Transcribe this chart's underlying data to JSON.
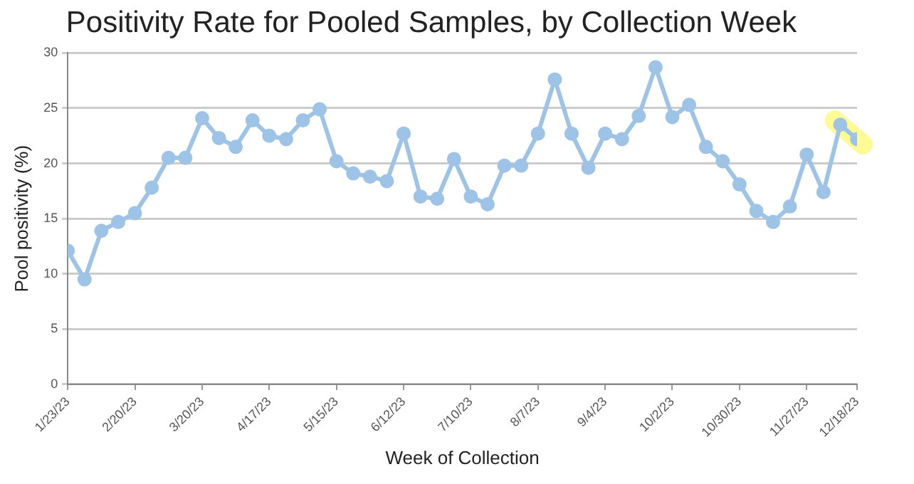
{
  "chart_data": {
    "type": "line",
    "title": "Positivity Rate for Pooled Samples, by Collection Week",
    "xlabel": "Week of Collection",
    "ylabel": "Pool positivity (%)",
    "x": [
      "2023-01-23",
      "2023-01-30",
      "2023-02-06",
      "2023-02-13",
      "2023-02-20",
      "2023-02-27",
      "2023-03-06",
      "2023-03-13",
      "2023-03-20",
      "2023-03-27",
      "2023-04-03",
      "2023-04-10",
      "2023-04-17",
      "2023-04-24",
      "2023-05-01",
      "2023-05-08",
      "2023-05-15",
      "2023-05-22",
      "2023-05-29",
      "2023-06-05",
      "2023-06-12",
      "2023-06-19",
      "2023-06-26",
      "2023-07-03",
      "2023-07-10",
      "2023-07-17",
      "2023-07-24",
      "2023-07-31",
      "2023-08-07",
      "2023-08-14",
      "2023-08-21",
      "2023-08-28",
      "2023-09-04",
      "2023-09-11",
      "2023-09-18",
      "2023-09-25",
      "2023-10-02",
      "2023-10-09",
      "2023-10-16",
      "2023-10-23",
      "2023-10-30",
      "2023-11-06",
      "2023-11-13",
      "2023-11-20",
      "2023-11-27",
      "2023-12-04",
      "2023-12-11",
      "2023-12-18"
    ],
    "series": [
      {
        "color": "#9dc3e6",
        "values": [
          12.1,
          9.5,
          13.9,
          14.7,
          15.5,
          17.8,
          20.5,
          20.5,
          24.1,
          22.3,
          21.5,
          23.9,
          22.5,
          22.2,
          23.9,
          24.9,
          20.2,
          19.1,
          18.8,
          18.4,
          22.7,
          17.0,
          16.8,
          20.4,
          17.0,
          16.3,
          19.8,
          19.8,
          22.7,
          27.6,
          22.7,
          19.6,
          22.7,
          22.2,
          24.3,
          28.7,
          24.2,
          25.3,
          21.5,
          20.2,
          18.1,
          15.7,
          14.7,
          16.1,
          20.8,
          17.4,
          23.5,
          22.2
        ]
      }
    ],
    "xlim": [
      "2023-01-23",
      "2023-12-18"
    ],
    "xticks": [
      {
        "value": "2023-01-23",
        "label": "1/23/23"
      },
      {
        "value": "2023-02-20",
        "label": "2/20/23"
      },
      {
        "value": "2023-03-20",
        "label": "3/20/23"
      },
      {
        "value": "2023-04-17",
        "label": "4/17/23"
      },
      {
        "value": "2023-05-15",
        "label": "5/15/23"
      },
      {
        "value": "2023-06-12",
        "label": "6/12/23"
      },
      {
        "value": "2023-07-10",
        "label": "7/10/23"
      },
      {
        "value": "2023-08-07",
        "label": "8/7/23"
      },
      {
        "value": "2023-09-04",
        "label": "9/4/23"
      },
      {
        "value": "2023-10-02",
        "label": "10/2/23"
      },
      {
        "value": "2023-10-30",
        "label": "10/30/23"
      },
      {
        "value": "2023-11-27",
        "label": "11/27/23"
      },
      {
        "value": "2023-12-18",
        "label": "12/18/23"
      }
    ],
    "ylim": [
      0,
      30
    ],
    "yticks": [
      0,
      5,
      10,
      15,
      20,
      25,
      30
    ],
    "grid": "y",
    "legend": false,
    "marker": "circle",
    "line_style": "solid"
  }
}
